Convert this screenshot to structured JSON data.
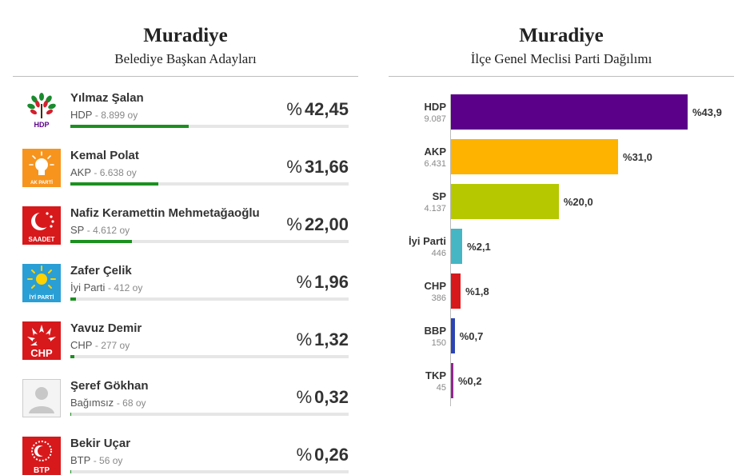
{
  "left": {
    "title": "Muradiye",
    "subtitle": "Belediye Başkan Adayları",
    "candidates": [
      {
        "name": "Yılmaz Şalan",
        "party": "HDP",
        "votes": "8.899 oy",
        "pct": "42,45",
        "pct_value": 42.45,
        "logo": "hdp-logo"
      },
      {
        "name": "Kemal Polat",
        "party": "AKP",
        "votes": "6.638 oy",
        "pct": "31,66",
        "pct_value": 31.66,
        "logo": "akp-logo"
      },
      {
        "name": "Nafiz Keramettin Mehmetağaoğlu",
        "party": "SP",
        "votes": "4.612 oy",
        "pct": "22,00",
        "pct_value": 22.0,
        "logo": "saadet-logo"
      },
      {
        "name": "Zafer Çelik",
        "party": "İyi Parti",
        "votes": "412 oy",
        "pct": "1,96",
        "pct_value": 1.96,
        "logo": "iyi-parti-logo"
      },
      {
        "name": "Yavuz Demir",
        "party": "CHP",
        "votes": "277 oy",
        "pct": "1,32",
        "pct_value": 1.32,
        "logo": "chp-logo"
      },
      {
        "name": "Şeref Gökhan",
        "party": "Bağımsız",
        "votes": "68 oy",
        "pct": "0,32",
        "pct_value": 0.32,
        "logo": "independent-avatar"
      },
      {
        "name": "Bekir Uçar",
        "party": "BTP",
        "votes": "56 oy",
        "pct": "0,26",
        "pct_value": 0.26,
        "logo": "btp-logo"
      }
    ],
    "pct_sign": "%",
    "bar_color": "#1c9020",
    "logo_text": {
      "hdp": "HDP",
      "akp": "AK PARTİ",
      "saadet": "SAADET",
      "iyi": "İYİ PARTİ",
      "chp": "CHP",
      "btp": "BTP"
    }
  },
  "right": {
    "title": "Muradiye",
    "subtitle": "İlçe Genel Meclisi Parti Dağılımı"
  },
  "chart_data": {
    "type": "bar",
    "orientation": "horizontal",
    "categories": [
      "HDP",
      "AKP",
      "SP",
      "İyi Parti",
      "CHP",
      "BBP",
      "TKP"
    ],
    "votes": [
      "9.087",
      "6.431",
      "4.137",
      "446",
      "386",
      "150",
      "45"
    ],
    "values": [
      43.9,
      31.0,
      20.0,
      2.1,
      1.8,
      0.7,
      0.2
    ],
    "value_labels": [
      "%43,9",
      "%31,0",
      "%20,0",
      "%2,1",
      "%1,8",
      "%0,7",
      "%0,2"
    ],
    "colors": [
      "#5b0089",
      "#fdb300",
      "#b5c800",
      "#44b6c4",
      "#d7191c",
      "#2b44b3",
      "#92278f"
    ],
    "xlim": [
      0,
      43.9
    ]
  }
}
